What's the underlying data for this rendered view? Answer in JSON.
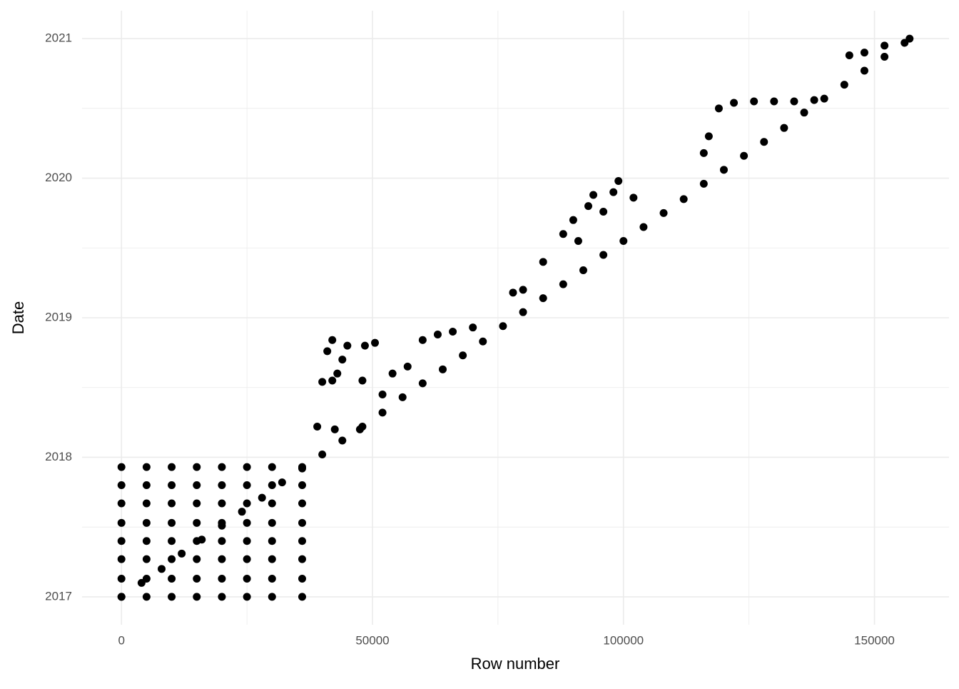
{
  "chart_data": {
    "type": "scatter",
    "x_label": "Row number",
    "y_label": "Date",
    "color": "#000000",
    "grid": true,
    "xlim": [
      -7850,
      164850
    ],
    "ylim": [
      2016.8,
      2021.2
    ],
    "xticks": [
      0,
      50000,
      100000,
      150000
    ],
    "yticks": [
      2017,
      2018,
      2019,
      2020,
      2021
    ],
    "x_minor_ticks": [
      25000,
      75000,
      125000
    ],
    "y_minor_ticks": [
      2017.5,
      2018.5,
      2019.5,
      2020.5
    ],
    "x": [
      0,
      0,
      0,
      0,
      0,
      0,
      0,
      0,
      5000,
      5000,
      5000,
      5000,
      5000,
      5000,
      5000,
      5000,
      10000,
      10000,
      10000,
      10000,
      10000,
      10000,
      10000,
      10000,
      15000,
      15000,
      15000,
      15000,
      15000,
      15000,
      15000,
      15000,
      20000,
      20000,
      20000,
      20000,
      20000,
      20000,
      20000,
      20000,
      25000,
      25000,
      25000,
      25000,
      25000,
      25000,
      25000,
      25000,
      30000,
      30000,
      30000,
      30000,
      30000,
      30000,
      30000,
      30000,
      36000,
      36000,
      36000,
      36000,
      36000,
      36000,
      36000,
      36000,
      0,
      4000,
      8000,
      12000,
      16000,
      20000,
      24000,
      28000,
      32000,
      36000,
      40000,
      44000,
      48000,
      52000,
      56000,
      60000,
      64000,
      68000,
      72000,
      76000,
      80000,
      84000,
      88000,
      92000,
      96000,
      100000,
      104000,
      108000,
      112000,
      116000,
      120000,
      124000,
      128000,
      132000,
      136000,
      140000,
      144000,
      148000,
      152000,
      156000,
      157000,
      39000,
      40000,
      41000,
      42000,
      42000,
      43000,
      44000,
      45000,
      42500,
      47500,
      48000,
      48500,
      50500,
      52000,
      54000,
      57000,
      60000,
      63000,
      66000,
      70000,
      78000,
      80000,
      84000,
      88000,
      90000,
      93000,
      94000,
      96000,
      98000,
      99000,
      91000,
      102000,
      116000,
      117000,
      119000,
      122000,
      126000,
      130000,
      134000,
      138000,
      145000,
      148000,
      152000
    ],
    "values": [
      2017.0,
      2017.13,
      2017.27,
      2017.4,
      2017.53,
      2017.67,
      2017.8,
      2017.93,
      2017.0,
      2017.13,
      2017.27,
      2017.4,
      2017.53,
      2017.67,
      2017.8,
      2017.93,
      2017.0,
      2017.13,
      2017.27,
      2017.4,
      2017.53,
      2017.67,
      2017.8,
      2017.93,
      2017.0,
      2017.13,
      2017.27,
      2017.4,
      2017.53,
      2017.67,
      2017.8,
      2017.93,
      2017.0,
      2017.13,
      2017.27,
      2017.4,
      2017.53,
      2017.67,
      2017.8,
      2017.93,
      2017.0,
      2017.13,
      2017.27,
      2017.4,
      2017.53,
      2017.67,
      2017.8,
      2017.93,
      2017.0,
      2017.13,
      2017.27,
      2017.4,
      2017.53,
      2017.67,
      2017.8,
      2017.93,
      2017.0,
      2017.13,
      2017.27,
      2017.4,
      2017.53,
      2017.67,
      2017.8,
      2017.93,
      2017.0,
      2017.1,
      2017.2,
      2017.31,
      2017.41,
      2017.51,
      2017.61,
      2017.71,
      2017.82,
      2017.92,
      2018.02,
      2018.12,
      2018.22,
      2018.32,
      2018.43,
      2018.53,
      2018.63,
      2018.73,
      2018.83,
      2018.94,
      2019.04,
      2019.14,
      2019.24,
      2019.34,
      2019.45,
      2019.55,
      2019.65,
      2019.75,
      2019.85,
      2019.96,
      2020.06,
      2020.16,
      2020.26,
      2020.36,
      2020.47,
      2020.57,
      2020.67,
      2020.77,
      2020.87,
      2020.97,
      2021.0,
      2018.22,
      2018.54,
      2018.76,
      2018.84,
      2018.55,
      2018.6,
      2018.7,
      2018.8,
      2018.2,
      2018.2,
      2018.55,
      2018.8,
      2018.82,
      2018.45,
      2018.6,
      2018.65,
      2018.84,
      2018.88,
      2018.9,
      2018.93,
      2019.18,
      2019.2,
      2019.4,
      2019.6,
      2019.7,
      2019.8,
      2019.88,
      2019.76,
      2019.9,
      2019.98,
      2019.55,
      2019.86,
      2020.18,
      2020.3,
      2020.5,
      2020.54,
      2020.55,
      2020.55,
      2020.55,
      2020.56,
      2020.88,
      2020.9,
      2020.95
    ]
  }
}
